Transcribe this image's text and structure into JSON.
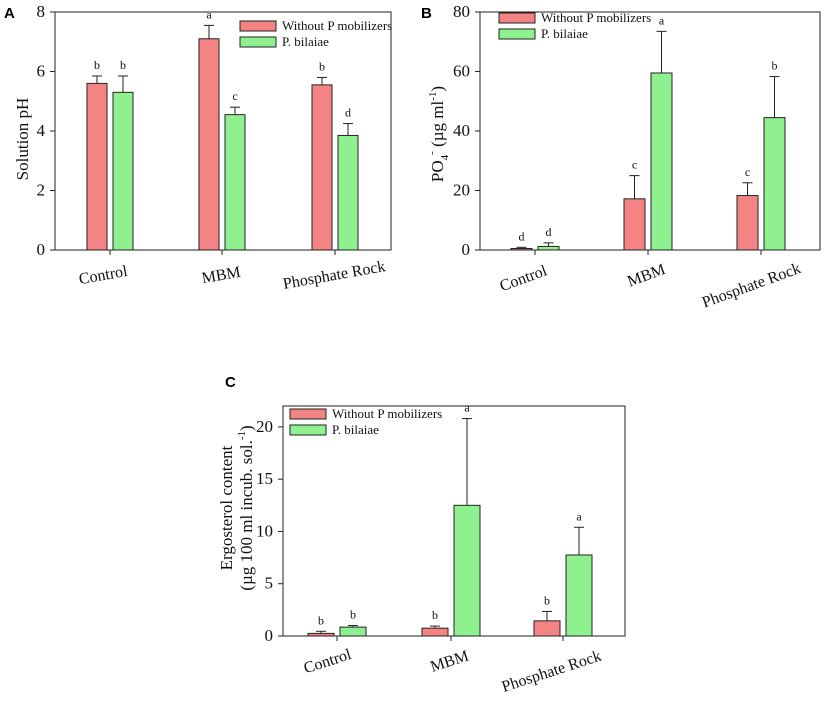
{
  "colors": {
    "without": "#F48484",
    "with": "#8FF08F"
  },
  "chart_data": [
    {
      "panel": "A",
      "type": "bar",
      "ylabel": "Solution pH",
      "ylim": [
        0,
        8
      ],
      "yticks": [
        0,
        2,
        4,
        6,
        8
      ],
      "categories": [
        "Control",
        "MBM",
        "Phosphate Rock"
      ],
      "legend": [
        "Without P mobilizers",
        "P. bilaiae"
      ],
      "legend_position": "top-right",
      "series": [
        {
          "name": "Without P mobilizers",
          "values": [
            5.6,
            7.1,
            5.55
          ],
          "errors": [
            0.25,
            0.45,
            0.25
          ],
          "letters": [
            "b",
            "a",
            "b"
          ]
        },
        {
          "name": "P. bilaiae",
          "values": [
            5.3,
            4.55,
            3.85
          ],
          "errors": [
            0.55,
            0.25,
            0.4
          ],
          "letters": [
            "b",
            "c",
            "d"
          ]
        }
      ]
    },
    {
      "panel": "B",
      "type": "bar",
      "ylabel_main": "PO",
      "ylabel_sub": "4",
      "ylabel_sup": "-",
      "ylabel_unit": " (µg ml",
      "ylabel_unit_sup": "-1",
      "ylabel_close": ")",
      "ylim": [
        0,
        80
      ],
      "yticks": [
        0,
        20,
        40,
        60,
        80
      ],
      "categories": [
        "Control",
        "MBM",
        "Phosphate Rock"
      ],
      "legend": [
        "Without P mobilizers",
        "P. bilaiae"
      ],
      "legend_position": "top-left",
      "series": [
        {
          "name": "Without P mobilizers",
          "values": [
            0.5,
            17.2,
            18.3
          ],
          "errors": [
            0.4,
            7.8,
            4.3
          ],
          "letters": [
            "d",
            "c",
            "c"
          ]
        },
        {
          "name": "P. bilaiae",
          "values": [
            1.2,
            59.5,
            44.5
          ],
          "errors": [
            1.2,
            14.0,
            13.8
          ],
          "letters": [
            "d",
            "a",
            "b"
          ]
        }
      ]
    },
    {
      "panel": "C",
      "type": "bar",
      "ylabel_line1": "Ergosterol content",
      "ylabel_line2": "(µg 100 ml incub. sol.",
      "ylabel_line2_sup": "-1",
      "ylabel_line2_close": ")",
      "ylim": [
        0,
        22
      ],
      "yticks": [
        0,
        5,
        10,
        15,
        20
      ],
      "categories": [
        "Control",
        "MBM",
        "Phosphate Rock"
      ],
      "legend": [
        "Without P mobilizers",
        "P. bilaiae"
      ],
      "legend_position": "top-left",
      "series": [
        {
          "name": "Without P mobilizers",
          "values": [
            0.25,
            0.75,
            1.45
          ],
          "errors": [
            0.2,
            0.2,
            0.9
          ],
          "letters": [
            "b",
            "b",
            "b"
          ]
        },
        {
          "name": "P. bilaiae",
          "values": [
            0.85,
            12.5,
            7.75
          ],
          "errors": [
            0.15,
            8.3,
            2.65
          ],
          "letters": [
            "b",
            "a",
            "a"
          ]
        }
      ]
    }
  ]
}
